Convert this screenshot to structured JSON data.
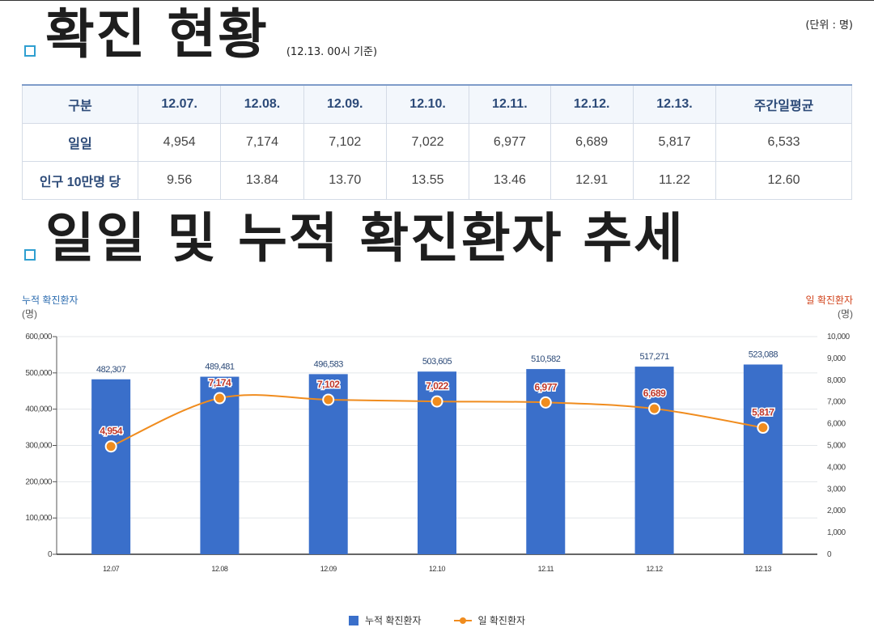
{
  "header": {
    "title": "확진 현황",
    "basis": "(12.13. 00시 기준)",
    "unit": "(단위 : 명)"
  },
  "table": {
    "headers": [
      "구분",
      "12.07.",
      "12.08.",
      "12.09.",
      "12.10.",
      "12.11.",
      "12.12.",
      "12.13.",
      "주간일평균"
    ],
    "rows": [
      {
        "label": "일일",
        "cells": [
          "4,954",
          "7,174",
          "7,102",
          "7,022",
          "6,977",
          "6,689",
          "5,817",
          "6,533"
        ]
      },
      {
        "label": "인구 10만명 당",
        "cells": [
          "9.56",
          "13.84",
          "13.70",
          "13.55",
          "13.46",
          "12.91",
          "11.22",
          "12.60"
        ]
      }
    ]
  },
  "section2": {
    "title": "일일 및 누적 확진환자 추세"
  },
  "chart_data": {
    "type": "bar",
    "categories": [
      "12.07",
      "12.08",
      "12.09",
      "12.10",
      "12.11",
      "12.12",
      "12.13"
    ],
    "series": [
      {
        "name": "누적 확진환자",
        "type": "bar",
        "axis": "left",
        "color": "#3a6fca",
        "values": [
          482307,
          489481,
          496583,
          503605,
          510582,
          517271,
          523088
        ],
        "labels": [
          "482,307",
          "489,481",
          "496,583",
          "503,605",
          "510,582",
          "517,271",
          "523,088"
        ]
      },
      {
        "name": "일 확진환자",
        "type": "line",
        "axis": "right",
        "color": "#f08c1e",
        "values": [
          4954,
          7174,
          7102,
          7022,
          6977,
          6689,
          5817
        ],
        "labels": [
          "4,954",
          "7,174",
          "7,102",
          "7,022",
          "6,977",
          "6,689",
          "5,817"
        ]
      }
    ],
    "y_left": {
      "title": "누적 확진환자",
      "unit": "(명)",
      "min": 0,
      "max": 600000,
      "ticks": [
        "0",
        "100,000",
        "200,000",
        "300,000",
        "400,000",
        "500,000",
        "600,000"
      ]
    },
    "y_right": {
      "title": "일 확진환자",
      "unit": "(명)",
      "min": 0,
      "max": 10000,
      "ticks": [
        "0",
        "1,000",
        "2,000",
        "3,000",
        "4,000",
        "5,000",
        "6,000",
        "7,000",
        "8,000",
        "9,000",
        "10,000"
      ]
    },
    "grid": true,
    "legend": "bottom-center"
  },
  "colors": {
    "bar": "#3a6fca",
    "line": "#f08c1e",
    "left_axis_title": "#2e6db0",
    "right_axis_title": "#d2451e",
    "line_label": "#c0392b"
  }
}
